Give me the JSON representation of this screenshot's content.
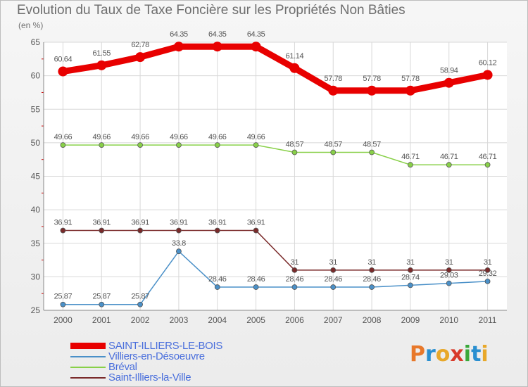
{
  "title": "Evolution du Taux de Taxe Foncière sur les Propriétés Non Bâties",
  "subtitle": "(en %)",
  "logo": {
    "text": "Proxiti",
    "letters": [
      {
        "ch": "P",
        "color": "#e8782a"
      },
      {
        "ch": "r",
        "color": "#2a8fd0"
      },
      {
        "ch": "o",
        "color": "#e8a82a"
      },
      {
        "ch": "x",
        "color": "#d83a2a"
      },
      {
        "ch": "i",
        "color": "#3aa83a"
      },
      {
        "ch": "t",
        "color": "#2a8fd0"
      },
      {
        "ch": "i",
        "color": "#e8a82a"
      }
    ]
  },
  "chart_data": {
    "type": "line",
    "x": [
      "2000",
      "2001",
      "2002",
      "2003",
      "2004",
      "2005",
      "2006",
      "2007",
      "2008",
      "2009",
      "2010",
      "2011"
    ],
    "ylim": [
      25,
      65
    ],
    "yticks": [
      "25",
      "30",
      "35",
      "40",
      "45",
      "50",
      "55",
      "60",
      "65"
    ],
    "grid": true,
    "legend_position": "bottom-left",
    "series": [
      {
        "name": "SAINT-ILLIERS-LE-BOIS",
        "color": "#e80000",
        "values": [
          60.64,
          61.55,
          62.78,
          64.35,
          64.35,
          64.35,
          61.14,
          57.78,
          57.78,
          57.78,
          58.94,
          60.12
        ],
        "labels": [
          "60.64",
          "61.55",
          "62.78",
          "64.35",
          "64.35",
          "64.35",
          "61.14",
          "57.78",
          "57.78",
          "57.78",
          "58.94",
          "60.12"
        ]
      },
      {
        "name": "Villiers-en-Désoeuvre",
        "color": "#4a90c8",
        "values": [
          25.87,
          25.87,
          25.87,
          33.8,
          28.46,
          28.46,
          28.46,
          28.46,
          28.46,
          28.74,
          29.03,
          29.32
        ],
        "labels": [
          "25.87",
          "25.87",
          "25.87",
          "33.8",
          "28.46",
          "28.46",
          "28.46",
          "28.46",
          "28.46",
          "28.74",
          "29.03",
          "29.32"
        ]
      },
      {
        "name": "Bréval",
        "color": "#88d048",
        "values": [
          49.66,
          49.66,
          49.66,
          49.66,
          49.66,
          49.66,
          48.57,
          48.57,
          48.57,
          46.71,
          46.71,
          46.71
        ],
        "labels": [
          "49.66",
          "49.66",
          "49.66",
          "49.66",
          "49.66",
          "49.66",
          "48.57",
          "48.57",
          "48.57",
          "46.71",
          "46.71",
          "46.71"
        ]
      },
      {
        "name": "Saint-Illiers-la-Ville",
        "color": "#7a2a2a",
        "values": [
          36.91,
          36.91,
          36.91,
          36.91,
          36.91,
          36.91,
          31,
          31,
          31,
          31,
          31,
          31
        ],
        "labels": [
          "36.91",
          "36.91",
          "36.91",
          "36.91",
          "36.91",
          "36.91",
          "31",
          "31",
          "31",
          "31",
          "31",
          "31"
        ]
      }
    ]
  }
}
